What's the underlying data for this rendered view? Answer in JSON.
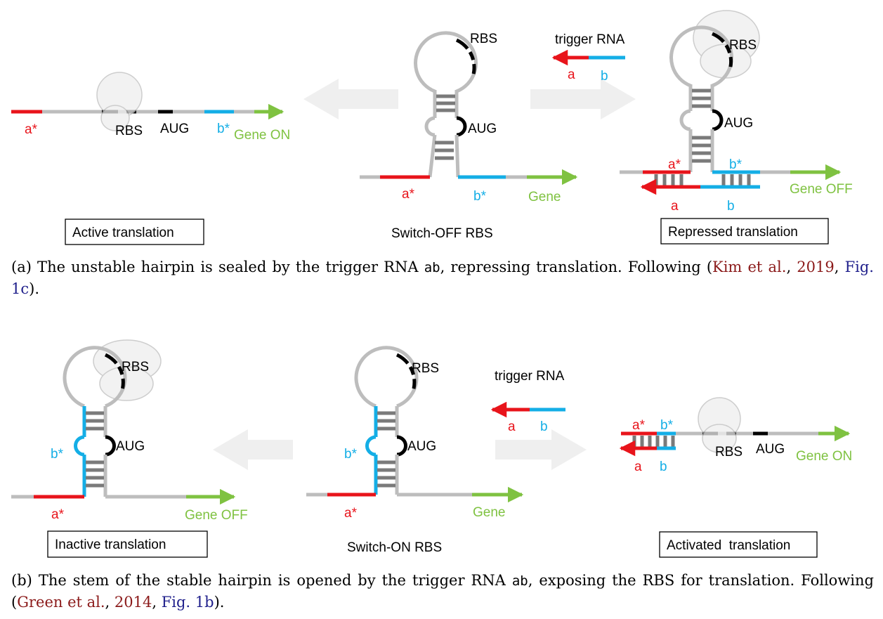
{
  "colors": {
    "red": "#e8141b",
    "blue": "#14aee6",
    "green": "#7fc241",
    "grey": "#bdbdbd",
    "dark": "#7a7a7a",
    "black": "#000000",
    "ribosome_fill": "#eeeeee",
    "arrow_fill": "#efefef"
  },
  "panel_a": {
    "active": {
      "a_star": "a*",
      "rbs": "RBS",
      "aug": "AUG",
      "b_star": "b*",
      "gene": "Gene ON",
      "box": "Active translation"
    },
    "switch": {
      "rbs": "RBS",
      "aug": "AUG",
      "a_star": "a*",
      "b_star": "b*",
      "gene": "Gene",
      "title": "Switch-OFF RBS"
    },
    "trigger": {
      "label": "trigger RNA",
      "a": "a",
      "b": "b"
    },
    "repressed": {
      "rbs": "RBS",
      "aug": "AUG",
      "a_star": "a*",
      "b_star": "b*",
      "a": "a",
      "b": "b",
      "gene": "Gene OFF",
      "box": "Repressed translation"
    },
    "caption": {
      "t1": "(a) The unstable hairpin is sealed by the trigger RNA ",
      "code": "ab",
      "t2": ", repressing translation. Following (",
      "ref_author": "Kim et al.",
      "sep": ", ",
      "ref_year": "2019",
      "t3": ",",
      "ref_fig": "Fig. 1c",
      "t4": ")."
    }
  },
  "panel_b": {
    "inactive": {
      "rbs": "RBS",
      "aug": "AUG",
      "b_star": "b*",
      "a_star": "a*",
      "gene": "Gene OFF",
      "box": "Inactive translation"
    },
    "switch": {
      "rbs": "RBS",
      "aug": "AUG",
      "b_star": "b*",
      "a_star": "a*",
      "gene": "Gene",
      "title": "Switch-ON RBS"
    },
    "trigger": {
      "label": "trigger RNA",
      "a": "a",
      "b": "b"
    },
    "activated": {
      "a_star": "a*",
      "b_star": "b*",
      "a": "a",
      "b": "b",
      "rbs": "RBS",
      "aug": "AUG",
      "gene": "Gene ON",
      "box": "Activated  translation"
    },
    "caption": {
      "t1": "(b) The stem of the stable hairpin is opened by the trigger RNA ",
      "code": "ab",
      "t2": ", exposing the RBS for translation. Following (",
      "ref_author": "Green et al.",
      "sep": ", ",
      "ref_year": "2014",
      "t3": ", ",
      "ref_fig": "Fig. 1b",
      "t4": ")."
    }
  }
}
